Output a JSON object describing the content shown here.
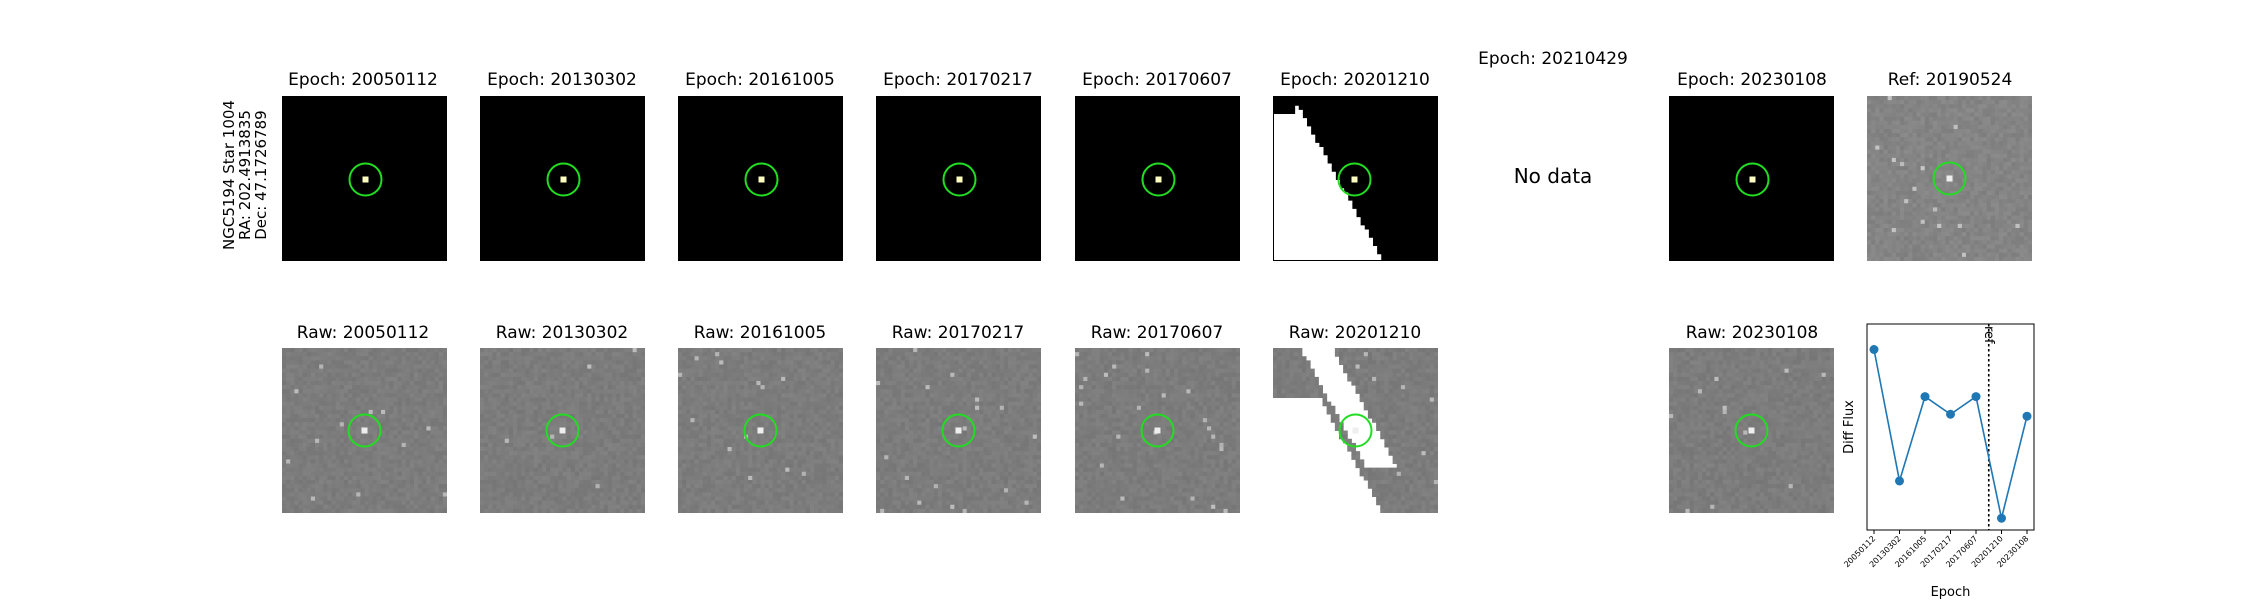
{
  "header": {
    "object": "NGC5194 Star 1004",
    "ra": "RA: 202.4913835",
    "dec": "Dec: 47.1726789"
  },
  "diff_titles": [
    "Epoch: 20050112",
    "Epoch: 20130302",
    "Epoch: 20161005",
    "Epoch: 20170217",
    "Epoch: 20170607",
    "Epoch: 20201210",
    "Epoch: 20210429",
    "Epoch: 20230108"
  ],
  "ref_title": "Ref: 20190524",
  "raw_titles": [
    "Raw: 20050112",
    "Raw: 20130302",
    "Raw: 20161005",
    "Raw: 20170217",
    "Raw: 20170607",
    "Raw: 20201210",
    "Raw: 20230108"
  ],
  "no_data_text": "No data",
  "colors": {
    "marker_circle": "#22dd22",
    "series": "#1f77b4",
    "ref_line": "#000000"
  },
  "chart_data": {
    "type": "line",
    "title": "",
    "xlabel": "Epoch",
    "ylabel": "Diff Flux",
    "x": [
      "20050112",
      "20130302",
      "20161005",
      "20170217",
      "20170607",
      "20201210",
      "20230108"
    ],
    "series": [
      {
        "values": [
          0.92,
          0.25,
          0.68,
          0.59,
          0.68,
          0.06,
          0.58
        ]
      }
    ],
    "ylim": [
      0,
      1.05
    ],
    "ref_marker": {
      "label": "ref",
      "position_between": [
        "20170607",
        "20201210"
      ]
    },
    "grid": false,
    "legend": "none"
  }
}
